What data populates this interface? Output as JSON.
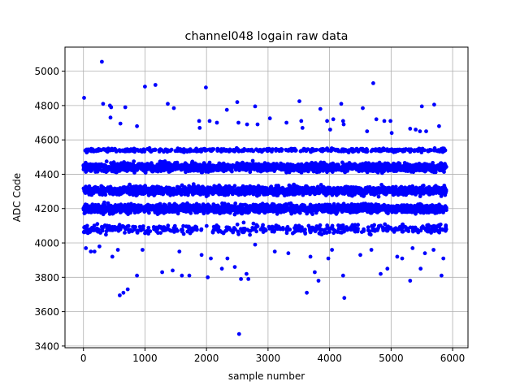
{
  "chart_data": {
    "type": "scatter",
    "title": "channel048 logain raw data",
    "xlabel": "sample number",
    "ylabel": "ADC Code",
    "xlim": [
      -300,
      6250
    ],
    "ylim": [
      3390,
      5140
    ],
    "xticks": [
      0,
      1000,
      2000,
      3000,
      4000,
      5000,
      6000
    ],
    "yticks": [
      3400,
      3600,
      3800,
      4000,
      4200,
      4400,
      4600,
      4800,
      5000
    ],
    "grid": true,
    "marker_color": "#0000ff",
    "n_samples": 5900,
    "bands": [
      {
        "level": 4080,
        "spread": 30,
        "weight": 0.07
      },
      {
        "level": 4200,
        "spread": 28,
        "weight": 0.27
      },
      {
        "level": 4305,
        "spread": 28,
        "weight": 0.27
      },
      {
        "level": 4440,
        "spread": 28,
        "weight": 0.27
      },
      {
        "level": 4540,
        "spread": 12,
        "weight": 0.08
      }
    ],
    "outliers": [
      {
        "x": 10,
        "y": 4845
      },
      {
        "x": 300,
        "y": 5055
      },
      {
        "x": 320,
        "y": 4810
      },
      {
        "x": 430,
        "y": 4800
      },
      {
        "x": 450,
        "y": 4790
      },
      {
        "x": 440,
        "y": 4730
      },
      {
        "x": 600,
        "y": 4695
      },
      {
        "x": 680,
        "y": 4790
      },
      {
        "x": 870,
        "y": 4680
      },
      {
        "x": 1000,
        "y": 4910
      },
      {
        "x": 1170,
        "y": 4920
      },
      {
        "x": 1370,
        "y": 4810
      },
      {
        "x": 1470,
        "y": 4785
      },
      {
        "x": 1880,
        "y": 4710
      },
      {
        "x": 1890,
        "y": 4670
      },
      {
        "x": 1990,
        "y": 4905
      },
      {
        "x": 2050,
        "y": 4710
      },
      {
        "x": 2170,
        "y": 4700
      },
      {
        "x": 2330,
        "y": 4775
      },
      {
        "x": 2500,
        "y": 4820
      },
      {
        "x": 2520,
        "y": 4700
      },
      {
        "x": 2660,
        "y": 4690
      },
      {
        "x": 2790,
        "y": 4795
      },
      {
        "x": 2830,
        "y": 4690
      },
      {
        "x": 3030,
        "y": 4725
      },
      {
        "x": 3300,
        "y": 4700
      },
      {
        "x": 3510,
        "y": 4825
      },
      {
        "x": 3540,
        "y": 4710
      },
      {
        "x": 3560,
        "y": 4670
      },
      {
        "x": 3850,
        "y": 4780
      },
      {
        "x": 3960,
        "y": 4710
      },
      {
        "x": 4060,
        "y": 4720
      },
      {
        "x": 4010,
        "y": 4660
      },
      {
        "x": 4190,
        "y": 4810
      },
      {
        "x": 4220,
        "y": 4710
      },
      {
        "x": 4230,
        "y": 4690
      },
      {
        "x": 4540,
        "y": 4785
      },
      {
        "x": 4610,
        "y": 4650
      },
      {
        "x": 4710,
        "y": 4930
      },
      {
        "x": 4760,
        "y": 4720
      },
      {
        "x": 4890,
        "y": 4710
      },
      {
        "x": 4990,
        "y": 4710
      },
      {
        "x": 5010,
        "y": 4640
      },
      {
        "x": 5310,
        "y": 4665
      },
      {
        "x": 5400,
        "y": 4660
      },
      {
        "x": 5470,
        "y": 4650
      },
      {
        "x": 5500,
        "y": 4795
      },
      {
        "x": 5570,
        "y": 4650
      },
      {
        "x": 5700,
        "y": 4805
      },
      {
        "x": 5780,
        "y": 4680
      },
      {
        "x": 40,
        "y": 3970
      },
      {
        "x": 120,
        "y": 3950
      },
      {
        "x": 180,
        "y": 3950
      },
      {
        "x": 260,
        "y": 3980
      },
      {
        "x": 470,
        "y": 3920
      },
      {
        "x": 560,
        "y": 3960
      },
      {
        "x": 590,
        "y": 3695
      },
      {
        "x": 650,
        "y": 3710
      },
      {
        "x": 720,
        "y": 3730
      },
      {
        "x": 870,
        "y": 3810
      },
      {
        "x": 960,
        "y": 3960
      },
      {
        "x": 1280,
        "y": 3830
      },
      {
        "x": 1450,
        "y": 3840
      },
      {
        "x": 1560,
        "y": 3950
      },
      {
        "x": 1600,
        "y": 3810
      },
      {
        "x": 1720,
        "y": 3810
      },
      {
        "x": 1920,
        "y": 3930
      },
      {
        "x": 2020,
        "y": 3800
      },
      {
        "x": 2070,
        "y": 3910
      },
      {
        "x": 2250,
        "y": 3850
      },
      {
        "x": 2340,
        "y": 3910
      },
      {
        "x": 2460,
        "y": 3860
      },
      {
        "x": 2530,
        "y": 3470
      },
      {
        "x": 2560,
        "y": 3790
      },
      {
        "x": 2650,
        "y": 3820
      },
      {
        "x": 2680,
        "y": 3790
      },
      {
        "x": 2790,
        "y": 3990
      },
      {
        "x": 3110,
        "y": 3950
      },
      {
        "x": 3330,
        "y": 3940
      },
      {
        "x": 3630,
        "y": 3710
      },
      {
        "x": 3690,
        "y": 3920
      },
      {
        "x": 3760,
        "y": 3830
      },
      {
        "x": 3820,
        "y": 3780
      },
      {
        "x": 3980,
        "y": 3910
      },
      {
        "x": 4040,
        "y": 3960
      },
      {
        "x": 4220,
        "y": 3810
      },
      {
        "x": 4240,
        "y": 3680
      },
      {
        "x": 4500,
        "y": 3930
      },
      {
        "x": 4680,
        "y": 3960
      },
      {
        "x": 4830,
        "y": 3820
      },
      {
        "x": 4940,
        "y": 3850
      },
      {
        "x": 5100,
        "y": 3920
      },
      {
        "x": 5180,
        "y": 3910
      },
      {
        "x": 5310,
        "y": 3780
      },
      {
        "x": 5350,
        "y": 3970
      },
      {
        "x": 5480,
        "y": 3850
      },
      {
        "x": 5550,
        "y": 3940
      },
      {
        "x": 5690,
        "y": 3960
      },
      {
        "x": 5820,
        "y": 3810
      },
      {
        "x": 5850,
        "y": 3910
      }
    ]
  }
}
